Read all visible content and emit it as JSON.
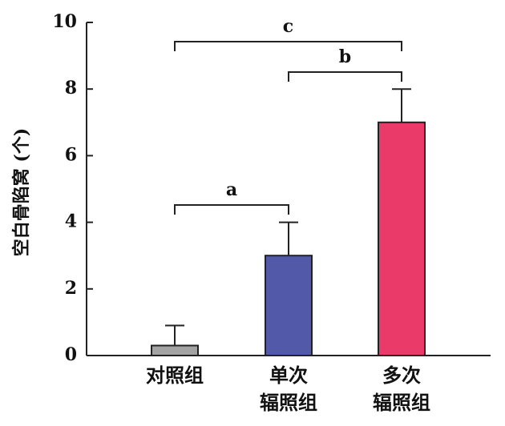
{
  "chart_data": {
    "type": "bar",
    "y_label": "空白骨陷窝 (个)",
    "categories": [
      "对照组",
      "单次\n辐照组",
      "多次\n辐照组"
    ],
    "values": [
      0.3,
      3,
      7
    ],
    "errors": [
      0.6,
      1,
      1
    ],
    "colors": [
      "#a3a3a3",
      "#5259a8",
      "#ea3a6a"
    ],
    "ylim": [
      0,
      10
    ],
    "yticks": [
      0,
      2,
      4,
      6,
      8,
      10
    ],
    "annotations": [
      "a",
      "b",
      "c"
    ]
  }
}
